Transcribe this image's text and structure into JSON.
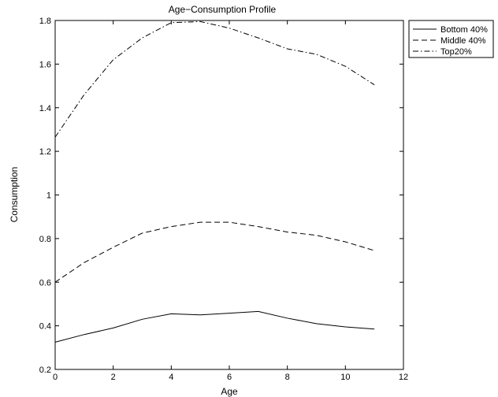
{
  "chart_data": {
    "type": "line",
    "title": "Age−Consumption Profile",
    "xlabel": "Age",
    "ylabel": "Consumption",
    "xlim": [
      0,
      12
    ],
    "ylim": [
      0.2,
      1.8
    ],
    "xticks": [
      "0",
      "2",
      "4",
      "6",
      "8",
      "10",
      "12"
    ],
    "yticks": [
      "0.2",
      "0.4",
      "0.6",
      "0.8",
      "1",
      "1.2",
      "1.4",
      "1.6",
      "1.8"
    ],
    "grid": false,
    "legend_position": "outside-top-right",
    "x": [
      0,
      1,
      2,
      3,
      4,
      5,
      6,
      7,
      8,
      9,
      10,
      11
    ],
    "series": [
      {
        "name": "Bottom 40%",
        "style": "solid",
        "values": [
          0.325,
          0.36,
          0.39,
          0.43,
          0.455,
          0.45,
          0.458,
          0.466,
          0.435,
          0.41,
          0.395,
          0.385
        ]
      },
      {
        "name": "Middle 40%",
        "style": "dashed",
        "values": [
          0.6,
          0.69,
          0.76,
          0.825,
          0.855,
          0.875,
          0.875,
          0.855,
          0.83,
          0.815,
          0.785,
          0.745
        ]
      },
      {
        "name": "Top20%",
        "style": "dashdot",
        "values": [
          1.265,
          1.46,
          1.62,
          1.72,
          1.79,
          1.795,
          1.765,
          1.72,
          1.67,
          1.645,
          1.59,
          1.505
        ]
      }
    ]
  }
}
